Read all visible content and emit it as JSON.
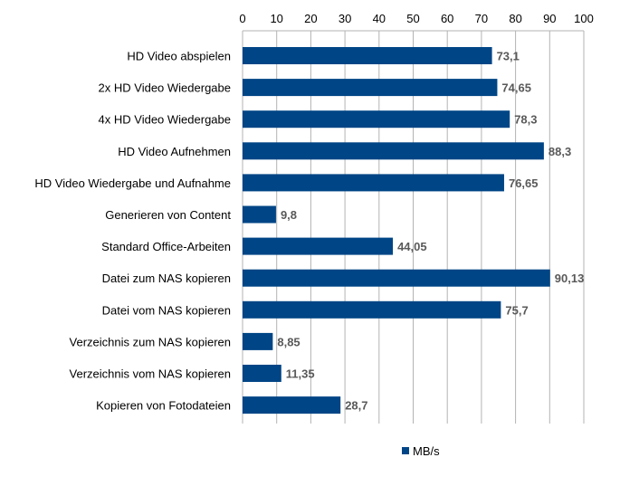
{
  "chart_data": {
    "type": "bar",
    "orientation": "horizontal",
    "categories": [
      "HD Video abspielen",
      "2x HD Video Wiedergabe",
      "4x HD Video Wiedergabe",
      "HD Video Aufnehmen",
      "HD Video Wiedergabe und Aufnahme",
      "Generieren von Content",
      "Standard Office-Arbeiten",
      "Datei zum NAS kopieren",
      "Datei vom NAS kopieren",
      "Verzeichnis zum NAS kopieren",
      "Verzeichnis vom NAS kopieren",
      "Kopieren von Fotodateien"
    ],
    "series": [
      {
        "name": "MB/s",
        "values": [
          73.1,
          74.65,
          78.3,
          88.3,
          76.65,
          9.8,
          44.05,
          90.13,
          75.7,
          8.85,
          11.35,
          28.7
        ],
        "labels": [
          "73,1",
          "74,65",
          "78,3",
          "88,3",
          "76,65",
          "9,8",
          "44,05",
          "90,13",
          "75,7",
          "8,85",
          "11,35",
          "28,7"
        ]
      }
    ],
    "xlim": [
      0,
      100
    ],
    "ticks": [
      0,
      10,
      20,
      30,
      40,
      50,
      60,
      70,
      80,
      90,
      100
    ],
    "tick_labels": [
      "0",
      "10",
      "20",
      "30",
      "40",
      "50",
      "60",
      "70",
      "80",
      "90",
      "100"
    ],
    "axis_position": "top",
    "grid": true,
    "legend": "bottom-center",
    "colors": {
      "bar": "#004586",
      "grid": "#b3b3b3",
      "label": "#595959",
      "text": "#000000"
    }
  }
}
